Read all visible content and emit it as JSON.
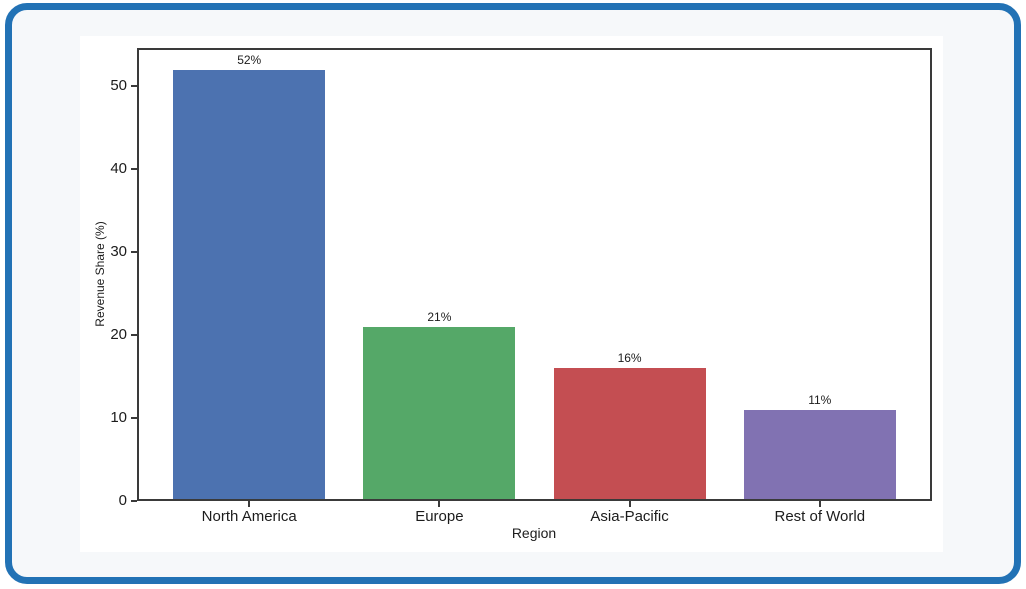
{
  "chart_data": {
    "type": "bar",
    "categories": [
      "North America",
      "Europe",
      "Asia-Pacific",
      "Rest of World"
    ],
    "values": [
      52,
      21,
      16,
      11
    ],
    "bar_labels": [
      "52%",
      "21%",
      "16%",
      "11%"
    ],
    "colors": [
      "#4C72B0",
      "#55A868",
      "#C44E52",
      "#8172B2"
    ],
    "title": "",
    "xlabel": "Region",
    "ylabel": "Revenue Share (%)",
    "yticks": [
      0,
      10,
      20,
      30,
      40,
      50
    ],
    "ylim": [
      0,
      54.6
    ],
    "grid": false,
    "legend": null
  },
  "style": {
    "card_border_color": "#2272B5",
    "card_background": "#F6F8FA",
    "panel_background": "#FFFFFF",
    "spine_color": "#3A3A3A",
    "text_color": "#1C1C1C"
  }
}
